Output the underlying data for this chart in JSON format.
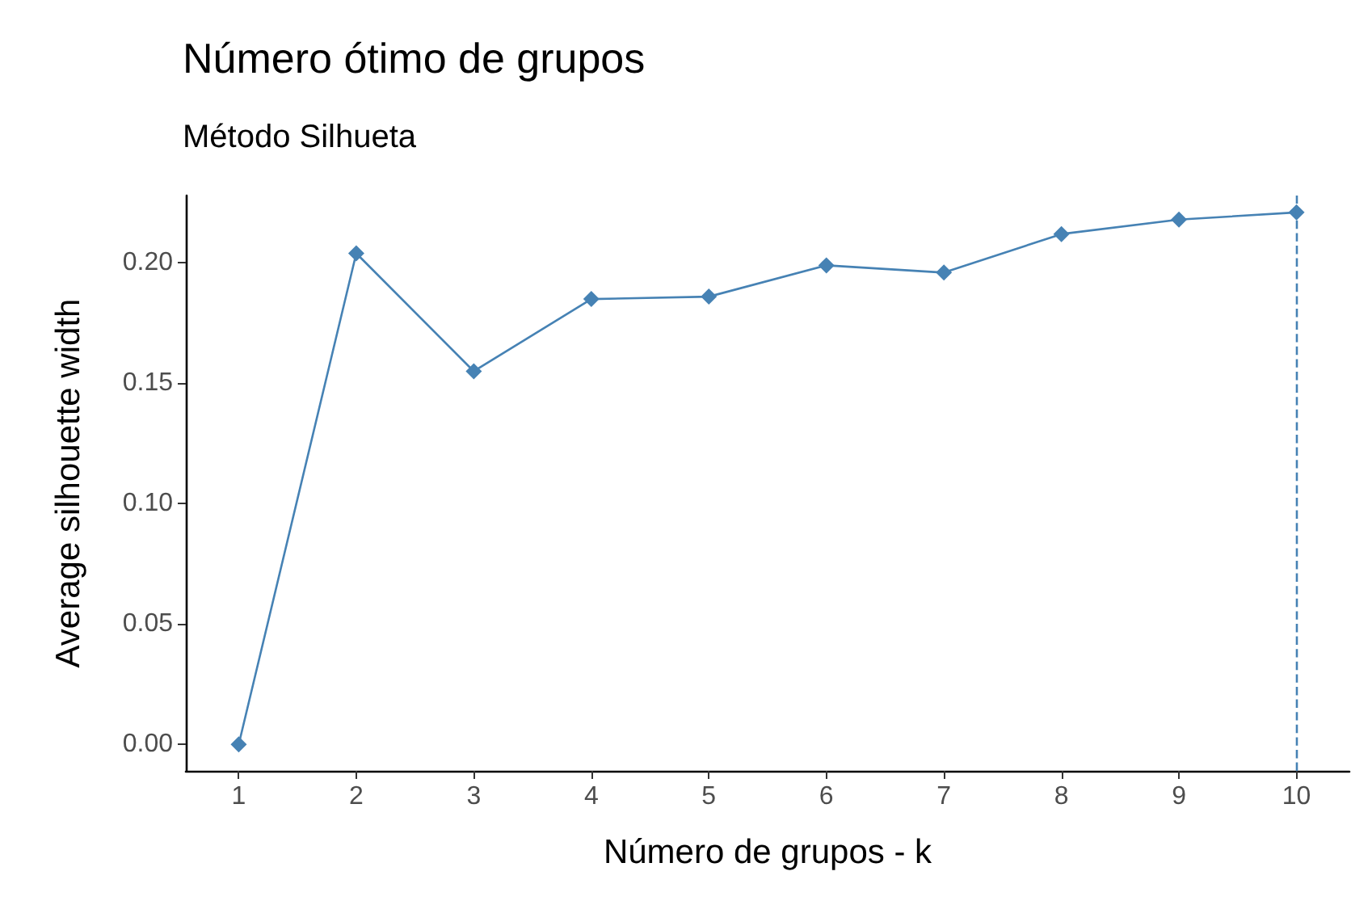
{
  "chart_data": {
    "type": "line",
    "title": "Número ótimo de grupos",
    "subtitle": "Método Silhueta",
    "xlabel": "Número de grupos - k",
    "ylabel": "Average silhouette width",
    "x": [
      1,
      2,
      3,
      4,
      5,
      6,
      7,
      8,
      9,
      10
    ],
    "series": [
      {
        "color": "#4682b4",
        "values": [
          0,
          0.204,
          0.155,
          0.185,
          0.186,
          0.199,
          0.196,
          0.212,
          0.218,
          0.221
        ]
      }
    ],
    "xlim": [
      0.55,
      10.45
    ],
    "xticks": [
      1,
      2,
      3,
      4,
      5,
      6,
      7,
      8,
      9,
      10
    ],
    "ylim": [
      -0.011,
      0.228
    ],
    "yticks": [
      {
        "value": 0,
        "label": "0.00"
      },
      {
        "value": 0.05,
        "label": "0.05"
      },
      {
        "value": 0.1,
        "label": "0.10"
      },
      {
        "value": 0.15,
        "label": "0.15"
      },
      {
        "value": 0.2,
        "label": "0.20"
      }
    ],
    "ref_lines": [
      {
        "axis": "x",
        "value": 10,
        "color": "#4682b4",
        "line_style": "dashed"
      }
    ],
    "marker": "diamond",
    "line_style": "solid",
    "grid": false
  }
}
